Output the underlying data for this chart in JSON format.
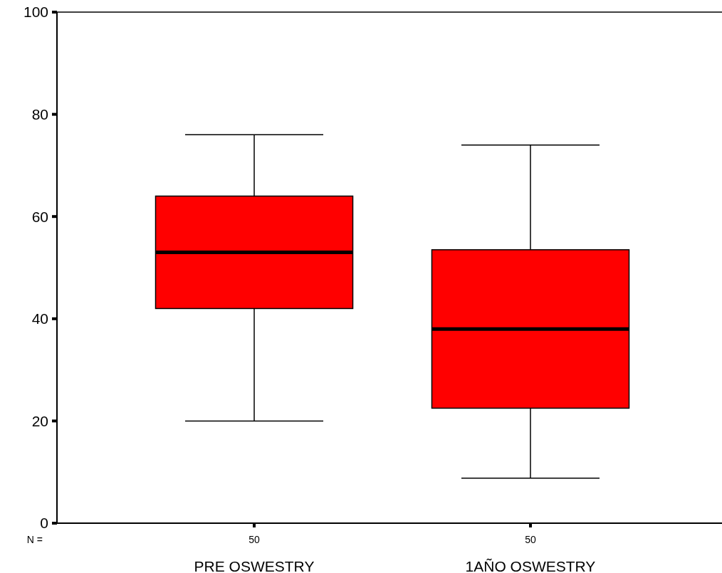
{
  "chart_data": {
    "type": "box",
    "categories": [
      "PRE OSWESTRY",
      "1AÑO OSWESTRY"
    ],
    "boxes": [
      {
        "low": 20,
        "q1": 42,
        "median": 53,
        "q3": 64,
        "high": 76
      },
      {
        "low": 8.8,
        "q1": 22.5,
        "median": 38,
        "q3": 53.5,
        "high": 74
      }
    ],
    "color": "#ff0000",
    "ylim": [
      0,
      100
    ],
    "yticks": [
      0,
      20,
      40,
      60,
      80,
      100
    ],
    "annotations": [
      "N =",
      "50",
      "50"
    ]
  }
}
